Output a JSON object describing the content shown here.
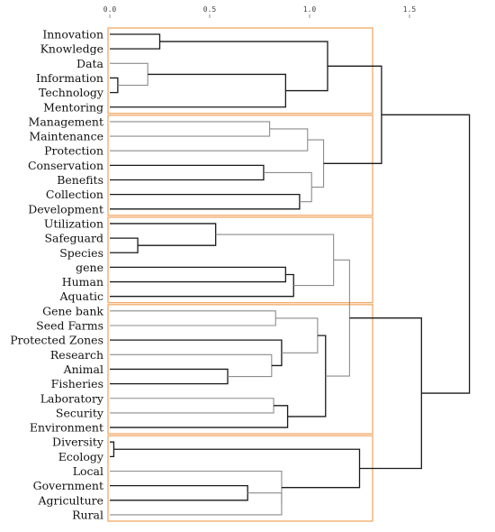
{
  "axis": {
    "ticks": [
      {
        "value": 0.0,
        "label": "0.0"
      },
      {
        "value": 0.5,
        "label": "0.5"
      },
      {
        "value": 1.0,
        "label": "1.0"
      },
      {
        "value": 1.5,
        "label": "1.5"
      }
    ],
    "range": [
      0,
      1.8
    ]
  },
  "colors": {
    "branch_dark": "#1a1a1a",
    "branch_light": "#8c8c8c",
    "cluster_box": "#f0a25a"
  },
  "leaves": [
    "Innovation",
    "Knowledge",
    "Data",
    "Information",
    "Technology",
    "Mentoring",
    "Management",
    "Maintenance",
    "Protection",
    "Conservation",
    "Benefits",
    "Collection",
    "Development",
    "Utilization",
    "Safeguard",
    "Species",
    "gene",
    "Human",
    "Aquatic",
    "Gene bank",
    "Seed Farms",
    "Protected Zones",
    "Research",
    "Animal",
    "Fisheries",
    "Laboratory",
    "Security",
    "Environment",
    "Diversity",
    "Ecology",
    "Local",
    "Government",
    "Agriculture",
    "Rural"
  ],
  "merges": [
    {
      "id": "m1",
      "a": "L0",
      "b": "L1",
      "h": 0.25,
      "tone": "dark"
    },
    {
      "id": "m2",
      "a": "L3",
      "b": "L4",
      "h": 0.04,
      "tone": "dark"
    },
    {
      "id": "m3",
      "a": "L2",
      "b": "m2",
      "h": 0.19,
      "tone": "light"
    },
    {
      "id": "m4",
      "a": "m3",
      "b": "L5",
      "h": 0.88,
      "tone": "dark"
    },
    {
      "id": "m5",
      "a": "m1",
      "b": "m4",
      "h": 1.09,
      "tone": "dark"
    },
    {
      "id": "m6",
      "a": "L6",
      "b": "L7",
      "h": 0.8,
      "tone": "light"
    },
    {
      "id": "m7",
      "a": "m6",
      "b": "L8",
      "h": 0.99,
      "tone": "light"
    },
    {
      "id": "m8",
      "a": "L9",
      "b": "L10",
      "h": 0.77,
      "tone": "dark"
    },
    {
      "id": "m9",
      "a": "L11",
      "b": "L12",
      "h": 0.95,
      "tone": "dark"
    },
    {
      "id": "m10",
      "a": "m8",
      "b": "m9",
      "h": 1.01,
      "tone": "light"
    },
    {
      "id": "m11",
      "a": "m7",
      "b": "m10",
      "h": 1.07,
      "tone": "light"
    },
    {
      "id": "m12",
      "a": "m5",
      "b": "m11",
      "h": 1.36,
      "tone": "dark"
    },
    {
      "id": "m13",
      "a": "L14",
      "b": "L15",
      "h": 0.14,
      "tone": "dark"
    },
    {
      "id": "m14",
      "a": "L13",
      "b": "m13",
      "h": 0.53,
      "tone": "dark"
    },
    {
      "id": "m15",
      "a": "L16",
      "b": "L17",
      "h": 0.88,
      "tone": "dark"
    },
    {
      "id": "m16",
      "a": "m15",
      "b": "L18",
      "h": 0.92,
      "tone": "dark"
    },
    {
      "id": "m17",
      "a": "m14",
      "b": "m16",
      "h": 1.12,
      "tone": "light"
    },
    {
      "id": "m18",
      "a": "L19",
      "b": "L20",
      "h": 0.83,
      "tone": "light"
    },
    {
      "id": "m19",
      "a": "L23",
      "b": "L24",
      "h": 0.59,
      "tone": "dark"
    },
    {
      "id": "m20",
      "a": "L22",
      "b": "m19",
      "h": 0.81,
      "tone": "light"
    },
    {
      "id": "m21",
      "a": "L21",
      "b": "m20",
      "h": 0.86,
      "tone": "dark"
    },
    {
      "id": "m22",
      "a": "m18",
      "b": "m21",
      "h": 1.04,
      "tone": "light"
    },
    {
      "id": "m23",
      "a": "L25",
      "b": "L26",
      "h": 0.82,
      "tone": "light"
    },
    {
      "id": "m24",
      "a": "m23",
      "b": "L27",
      "h": 0.89,
      "tone": "dark"
    },
    {
      "id": "m25",
      "a": "m22",
      "b": "m24",
      "h": 1.08,
      "tone": "dark"
    },
    {
      "id": "m26",
      "a": "m17",
      "b": "m25",
      "h": 1.2,
      "tone": "light"
    },
    {
      "id": "m27",
      "a": "L28",
      "b": "L29",
      "h": 0.02,
      "tone": "dark"
    },
    {
      "id": "m28",
      "a": "L31",
      "b": "L32",
      "h": 0.69,
      "tone": "dark"
    },
    {
      "id": "m29",
      "a": "m28",
      "b": "L33",
      "h": 0.86,
      "tone": "light"
    },
    {
      "id": "m30",
      "a": "L30",
      "b": "m29",
      "h": 0.86,
      "tone": "light"
    },
    {
      "id": "m31",
      "a": "m27",
      "b": "m30",
      "h": 1.25,
      "tone": "dark"
    },
    {
      "id": "m32",
      "a": "m26",
      "b": "m31",
      "h": 1.56,
      "tone": "dark"
    },
    {
      "id": "m33",
      "a": "m12",
      "b": "m32",
      "h": 1.8,
      "tone": "dark"
    }
  ],
  "cluster_groups": [
    {
      "first": 0,
      "last": 5
    },
    {
      "first": 6,
      "last": 12
    },
    {
      "first": 13,
      "last": 18
    },
    {
      "first": 19,
      "last": 27
    },
    {
      "first": 28,
      "last": 33
    }
  ]
}
